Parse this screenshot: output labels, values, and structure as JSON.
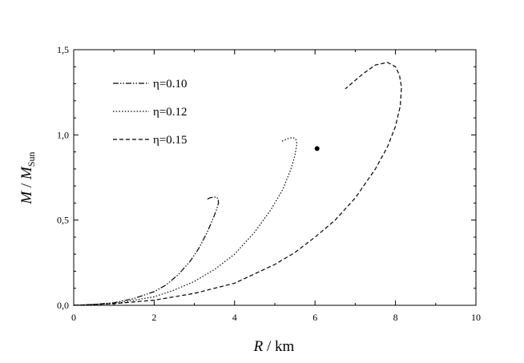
{
  "chart_data": {
    "type": "line",
    "title": "",
    "xlabel": {
      "var": "R",
      "sep": " / ",
      "unit": "km"
    },
    "ylabel": {
      "var": "M",
      "sep": " / ",
      "sub_var": "M",
      "sub": "Sun"
    },
    "xlim": [
      0,
      10
    ],
    "ylim": [
      0.0,
      1.5
    ],
    "x_ticks": [
      0,
      2,
      4,
      6,
      8,
      10
    ],
    "x_tick_labels": [
      "0",
      "2",
      "4",
      "6",
      "8",
      "10"
    ],
    "y_ticks": [
      0.0,
      0.5,
      1.0,
      1.5
    ],
    "y_tick_labels": [
      "0,0",
      "0,5",
      "1,0",
      "1,5"
    ],
    "grid": false,
    "legend_position": "top-left",
    "series": [
      {
        "name": "η=0.10",
        "line_style": "dash-dot-dot",
        "x": [
          0.0,
          0.5,
          1.0,
          1.5,
          2.0,
          2.3,
          2.6,
          2.9,
          3.1,
          3.3,
          3.45,
          3.55,
          3.6,
          3.59,
          3.55,
          3.47,
          3.38,
          3.3
        ],
        "y": [
          0.0,
          0.005,
          0.015,
          0.04,
          0.08,
          0.12,
          0.18,
          0.26,
          0.33,
          0.42,
          0.5,
          0.56,
          0.6,
          0.625,
          0.635,
          0.635,
          0.63,
          0.62
        ]
      },
      {
        "name": "η=0.12",
        "line_style": "dotted",
        "x": [
          0.0,
          1.0,
          2.0,
          2.5,
          3.0,
          3.5,
          4.0,
          4.5,
          4.9,
          5.2,
          5.4,
          5.5,
          5.55,
          5.52,
          5.45,
          5.35,
          5.25,
          5.15
        ],
        "y": [
          0.0,
          0.01,
          0.05,
          0.09,
          0.14,
          0.21,
          0.3,
          0.43,
          0.56,
          0.68,
          0.8,
          0.88,
          0.95,
          0.975,
          0.985,
          0.98,
          0.97,
          0.96
        ]
      },
      {
        "name": "η=0.15",
        "line_style": "dashed",
        "x": [
          0.0,
          1.0,
          2.0,
          3.0,
          4.0,
          5.0,
          5.5,
          6.0,
          6.5,
          7.0,
          7.5,
          7.8,
          8.0,
          8.12,
          8.15,
          8.1,
          8.0,
          7.8,
          7.5,
          7.2,
          6.9,
          6.75
        ],
        "y": [
          0.0,
          0.01,
          0.03,
          0.07,
          0.13,
          0.24,
          0.31,
          0.4,
          0.5,
          0.63,
          0.8,
          0.93,
          1.05,
          1.17,
          1.28,
          1.35,
          1.4,
          1.425,
          1.41,
          1.36,
          1.3,
          1.27
        ]
      }
    ],
    "points": [
      {
        "x": 6.05,
        "y": 0.92
      }
    ]
  }
}
